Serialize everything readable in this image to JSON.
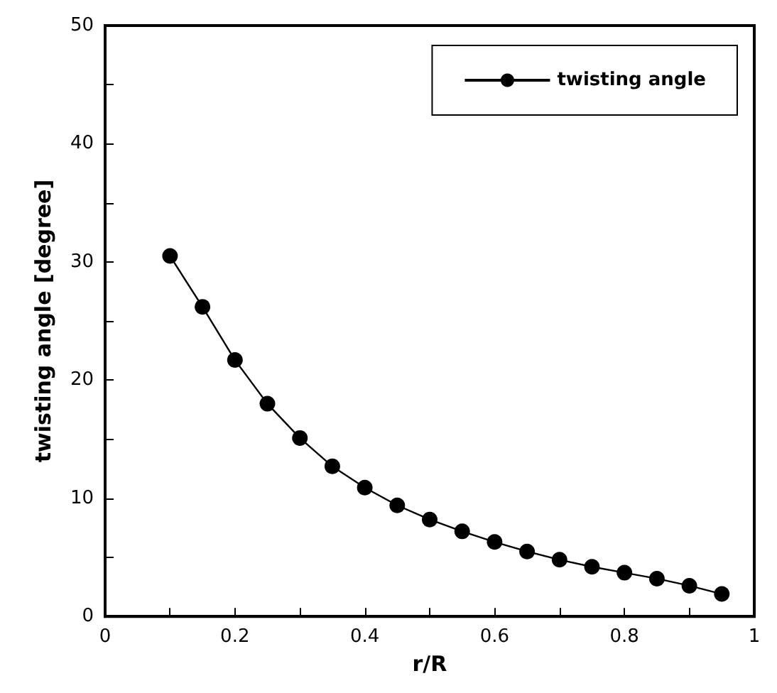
{
  "chart_data": {
    "type": "line",
    "xlabel": "r/R",
    "ylabel": "twisting angle [degree]",
    "x": [
      0.1,
      0.15,
      0.2,
      0.25,
      0.3,
      0.35,
      0.4,
      0.45,
      0.5,
      0.55,
      0.6,
      0.65,
      0.7,
      0.75,
      0.8,
      0.85,
      0.9,
      0.95
    ],
    "series": [
      {
        "name": "twisting angle",
        "color": "#000000",
        "values": [
          30.5,
          26.2,
          21.7,
          18.0,
          15.1,
          12.7,
          10.9,
          9.4,
          8.2,
          7.2,
          6.3,
          5.5,
          4.8,
          4.2,
          3.7,
          3.2,
          2.6,
          1.9
        ]
      }
    ],
    "xlim": [
      0,
      1
    ],
    "ylim": [
      0,
      50
    ],
    "xticks": [
      0,
      {
        "value": 0.1,
        "label": null
      },
      0.2,
      {
        "value": 0.3,
        "label": null
      },
      0.4,
      {
        "value": 0.5,
        "label": null
      },
      0.6,
      {
        "value": 0.7,
        "label": null
      },
      0.8,
      {
        "value": 0.9,
        "label": null
      },
      1
    ],
    "yticks": [
      0,
      {
        "value": 5,
        "label": null
      },
      10,
      {
        "value": 15,
        "label": null
      },
      20,
      {
        "value": 25,
        "label": null
      },
      30,
      {
        "value": 35,
        "label": null
      },
      40,
      {
        "value": 45,
        "label": null
      },
      50
    ],
    "grid": false,
    "legend": "top right",
    "marker": "circle",
    "line_style": "solid"
  }
}
